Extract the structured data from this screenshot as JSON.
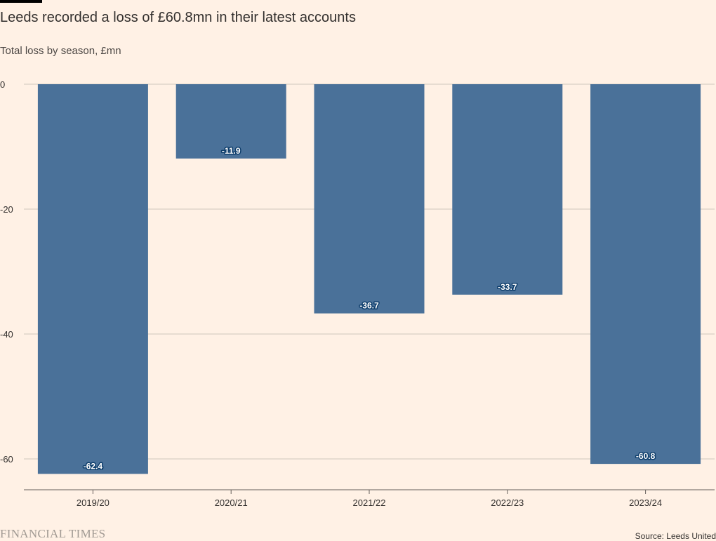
{
  "chart_data": {
    "type": "bar",
    "title": "Leeds recorded a loss of £60.8mn in their latest accounts",
    "subtitle": "Total loss by season, £mn",
    "categories": [
      "2019/20",
      "2020/21",
      "2021/22",
      "2022/23",
      "2023/24"
    ],
    "values": [
      -62.4,
      -11.9,
      -36.7,
      -33.7,
      -60.8
    ],
    "data_labels": [
      "-62.4",
      "-11.9",
      "-36.7",
      "-33.7",
      "-60.8"
    ],
    "ylim": [
      -65,
      0
    ],
    "yticks": [
      0,
      -20,
      -40,
      -60
    ],
    "ytick_labels": [
      "0",
      "-20",
      "-40",
      "-60"
    ],
    "xlabel": "",
    "ylabel": "",
    "grid": true,
    "bar_color": "#4A7199",
    "label_color": "#FFFFFF",
    "label_halo_color": "#0D3D6B"
  },
  "footer": {
    "brand": "FINANCIAL TIMES",
    "source": "Source: Leeds United"
  }
}
